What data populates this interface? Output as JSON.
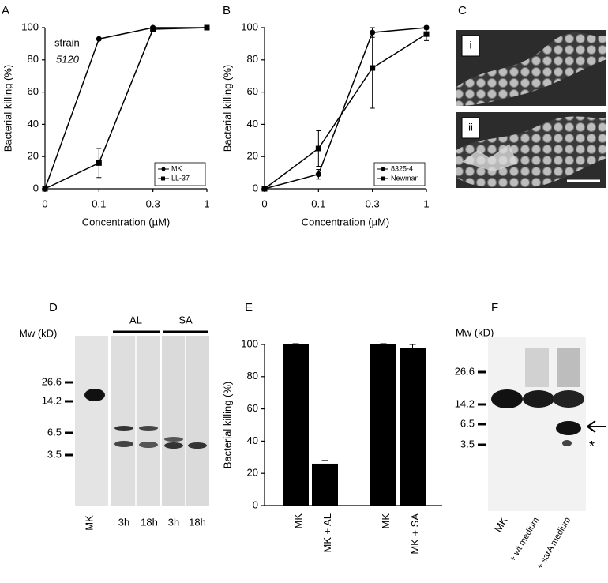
{
  "chart_data": [
    {
      "type": "line",
      "panel": "A",
      "xlabel": "Concentration (µM)",
      "ylabel": "Bacterial killing (%)",
      "categories": [
        "0",
        "0.1",
        "0.3",
        "1"
      ],
      "ylim": [
        0,
        100
      ],
      "yticks": [
        0,
        20,
        40,
        60,
        80,
        100
      ],
      "annotations": [
        "strain",
        "5120"
      ],
      "legend": "bottom-right",
      "series": [
        {
          "name": "MK",
          "color": "#000000",
          "marker": "circle",
          "values": [
            0,
            93,
            100,
            100
          ]
        },
        {
          "name": "LL-37",
          "color": "#000000",
          "marker": "square",
          "values": [
            0,
            16,
            99,
            100
          ],
          "errors": [
            null,
            9,
            1,
            null
          ]
        }
      ]
    },
    {
      "type": "line",
      "panel": "B",
      "xlabel": "Concentration (µM)",
      "ylabel": "Bacterial killing (%)",
      "categories": [
        "0",
        "0.1",
        "0.3",
        "1"
      ],
      "ylim": [
        0,
        100
      ],
      "yticks": [
        0,
        20,
        40,
        60,
        80,
        100
      ],
      "legend": "bottom-right",
      "series": [
        {
          "name": "8325-4",
          "color": "#000000",
          "marker": "circle",
          "values": [
            0,
            9,
            97,
            100
          ],
          "errors": [
            null,
            3,
            3,
            1
          ]
        },
        {
          "name": "Newman",
          "color": "#000000",
          "marker": "square",
          "values": [
            0,
            25,
            75,
            96
          ],
          "errors": [
            null,
            11,
            25,
            4
          ]
        }
      ]
    },
    {
      "type": "bar",
      "panel": "E",
      "ylabel": "Bacterial killing (%)",
      "categories": [
        "MK",
        "MK + AL",
        null,
        "MK",
        "MK + SA"
      ],
      "values": [
        100,
        26,
        null,
        100,
        98
      ],
      "errors": [
        0.5,
        2,
        null,
        0.5,
        2
      ],
      "color": "#000000",
      "ylim": [
        0,
        100
      ],
      "yticks": [
        0,
        20,
        40,
        60,
        80,
        100
      ]
    }
  ],
  "figures": {
    "C": {
      "panel": "C",
      "images": [
        "i",
        "ii"
      ]
    },
    "D": {
      "panel": "D",
      "mw_label": "Mw (kD)",
      "markers": [
        "26.6",
        "14.2",
        "6.5",
        "3.5"
      ],
      "groups": [
        "AL",
        "SA"
      ],
      "lanes": [
        "MK",
        "3h",
        "18h",
        "3h",
        "18h"
      ]
    },
    "F": {
      "panel": "F",
      "mw_label": "Mw (kD)",
      "markers": [
        "26.6",
        "14.2",
        "6.5",
        "3.5"
      ],
      "lanes": [
        "MK",
        "+ wt medium",
        "+ sarA medium"
      ],
      "annotation": "*"
    }
  }
}
